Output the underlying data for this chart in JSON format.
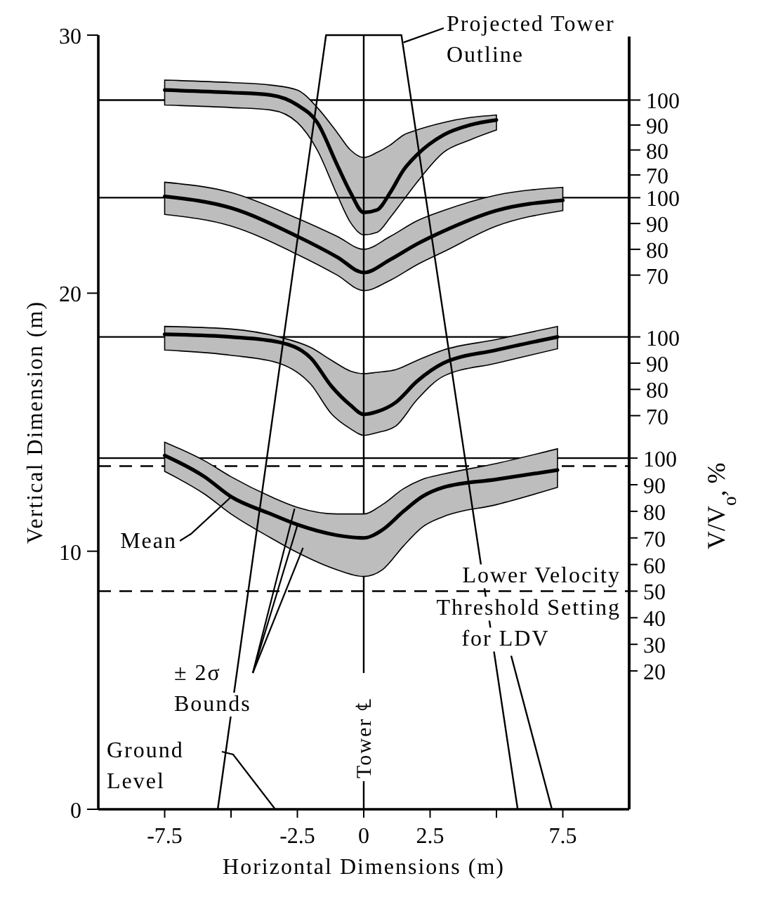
{
  "chart_data": [
    {
      "type": "line",
      "xlabel": "Horizontal Dimensions (m)",
      "ylabel": "Vertical Dimension (m)",
      "y2label": "V/V$_{o}$, %",
      "xlim": [
        -10,
        10
      ],
      "ylim": [
        0,
        30
      ],
      "y2lim": [
        -32,
        259
      ],
      "xticks": [
        -7.5,
        {
          "value": -5,
          "label": null
        },
        -2.5,
        0,
        2.5,
        {
          "value": 5,
          "label": null
        },
        7.5
      ],
      "yticks": [
        0,
        10,
        20,
        30
      ],
      "y2ticks": [
        100,
        90,
        80,
        70,
        60,
        50,
        40,
        30,
        20
      ],
      "grid": false,
      "marker": "none",
      "line_style": "solid",
      "series": [
        {
          "axis": "y2",
          "color": "#000000",
          "x": [
            -7.5,
            -6,
            -5,
            -3.5,
            -2.5,
            -1,
            0,
            0.7,
            1.5,
            2.2,
            3,
            5,
            7.3
          ],
          "values": [
            101,
            93,
            85.5,
            79,
            75,
            71,
            70,
            73,
            80,
            85.5,
            89,
            92,
            95.5
          ],
          "upper": [
            106,
            99,
            93,
            85.5,
            81.5,
            79,
            79,
            82.5,
            88.5,
            92,
            94,
            98,
            103.5
          ],
          "lower": [
            95,
            86.5,
            79,
            70,
            64.5,
            58,
            55.5,
            58,
            67,
            74,
            78,
            82.5,
            89
          ]
        },
        {
          "type": "line",
          "color": "#000000",
          "x": [
            -5.5,
            -1.42,
            1.42,
            5.8
          ],
          "values": [
            0,
            30,
            30,
            0
          ]
        }
      ],
      "ref_lines": [
        {
          "axis": "y2",
          "value": 100
        },
        {
          "axis": "y2",
          "value": 97,
          "line_style": "dashed"
        },
        {
          "axis": "y2",
          "value": 50,
          "line_style": "dashed",
          "label": "Lower Velocity Threshold Setting for LDV"
        },
        {
          "axis": "x",
          "value": 0,
          "label": "Tower ℄"
        }
      ],
      "annotations": [
        {
          "text": "Projected Tower Outline",
          "x": 1.5,
          "y": 29.5
        },
        {
          "text": "Mean",
          "x": -5,
          "y": 12.1
        },
        {
          "text": "± 2σ Bounds",
          "x": -2.5,
          "y": 11
        },
        "Ground Level"
      ]
    },
    {
      "type": "line",
      "xlim": [
        -10,
        10
      ],
      "ylim": [
        -184,
        126
      ],
      "yticks": [
        100,
        90,
        80,
        70
      ],
      "tick_labels": "y",
      "line_style": "solid",
      "series": [
        {
          "color": "#000000",
          "x": [
            -7.5,
            -5,
            -3.5,
            -2.5,
            -1.75,
            -1,
            -0.5,
            0,
            0.5,
            1,
            1.5,
            2,
            3,
            4,
            5
          ],
          "values": [
            104,
            103,
            102,
            98,
            91,
            74,
            63,
            55,
            56,
            63,
            72,
            78,
            86,
            90,
            92
          ],
          "upper": [
            108,
            107,
            106,
            104,
            97,
            87,
            80,
            77,
            79,
            82,
            86,
            88,
            91,
            93,
            94
          ],
          "lower": [
            98,
            97,
            96,
            91,
            80,
            62,
            51,
            46,
            47,
            53,
            60,
            67,
            79,
            84,
            88
          ]
        }
      ],
      "ref_lines": [
        {
          "axis": "y",
          "value": 100
        }
      ]
    },
    {
      "type": "line",
      "xlim": [
        -10,
        10
      ],
      "ylim": [
        -137,
        163
      ],
      "yticks": [
        100,
        90,
        80,
        70
      ],
      "tick_labels": "y",
      "line_style": "solid",
      "series": [
        {
          "color": "#000000",
          "x": [
            -7.5,
            -5,
            -2.5,
            -1,
            0,
            1,
            2,
            3,
            5,
            7.5
          ],
          "values": [
            100.5,
            96,
            85,
            77,
            71,
            76,
            82,
            87,
            95,
            99
          ],
          "upper": [
            106,
            102,
            92,
            85,
            80,
            85,
            91,
            95,
            101,
            104
          ],
          "lower": [
            93.5,
            89,
            78,
            70,
            64,
            68,
            74,
            79,
            89,
            95
          ]
        }
      ],
      "ref_lines": [
        {
          "axis": "y",
          "value": 100
        }
      ]
    },
    {
      "type": "line",
      "xlim": [
        -10,
        10
      ],
      "ylim": [
        -80,
        215
      ],
      "yticks": [
        100,
        90,
        80,
        70
      ],
      "tick_labels": "y",
      "line_style": "solid",
      "series": [
        {
          "color": "#000000",
          "x": [
            -7.5,
            -5,
            -3.2,
            -2,
            -1.2,
            -0.5,
            0,
            0.5,
            1.2,
            2,
            3,
            5,
            7.3
          ],
          "values": [
            101,
            100,
            98,
            92,
            81,
            74,
            70.5,
            71.5,
            75,
            83,
            90,
            95,
            100
          ],
          "upper": [
            104,
            103,
            100,
            96,
            91,
            87,
            86,
            86.5,
            87.5,
            91,
            95,
            99,
            104
          ],
          "lower": [
            95,
            93,
            90,
            82,
            70.5,
            65,
            62.5,
            63.5,
            66,
            76,
            85,
            90,
            95.5
          ]
        }
      ],
      "ref_lines": [
        {
          "axis": "y",
          "value": 100
        }
      ]
    }
  ]
}
